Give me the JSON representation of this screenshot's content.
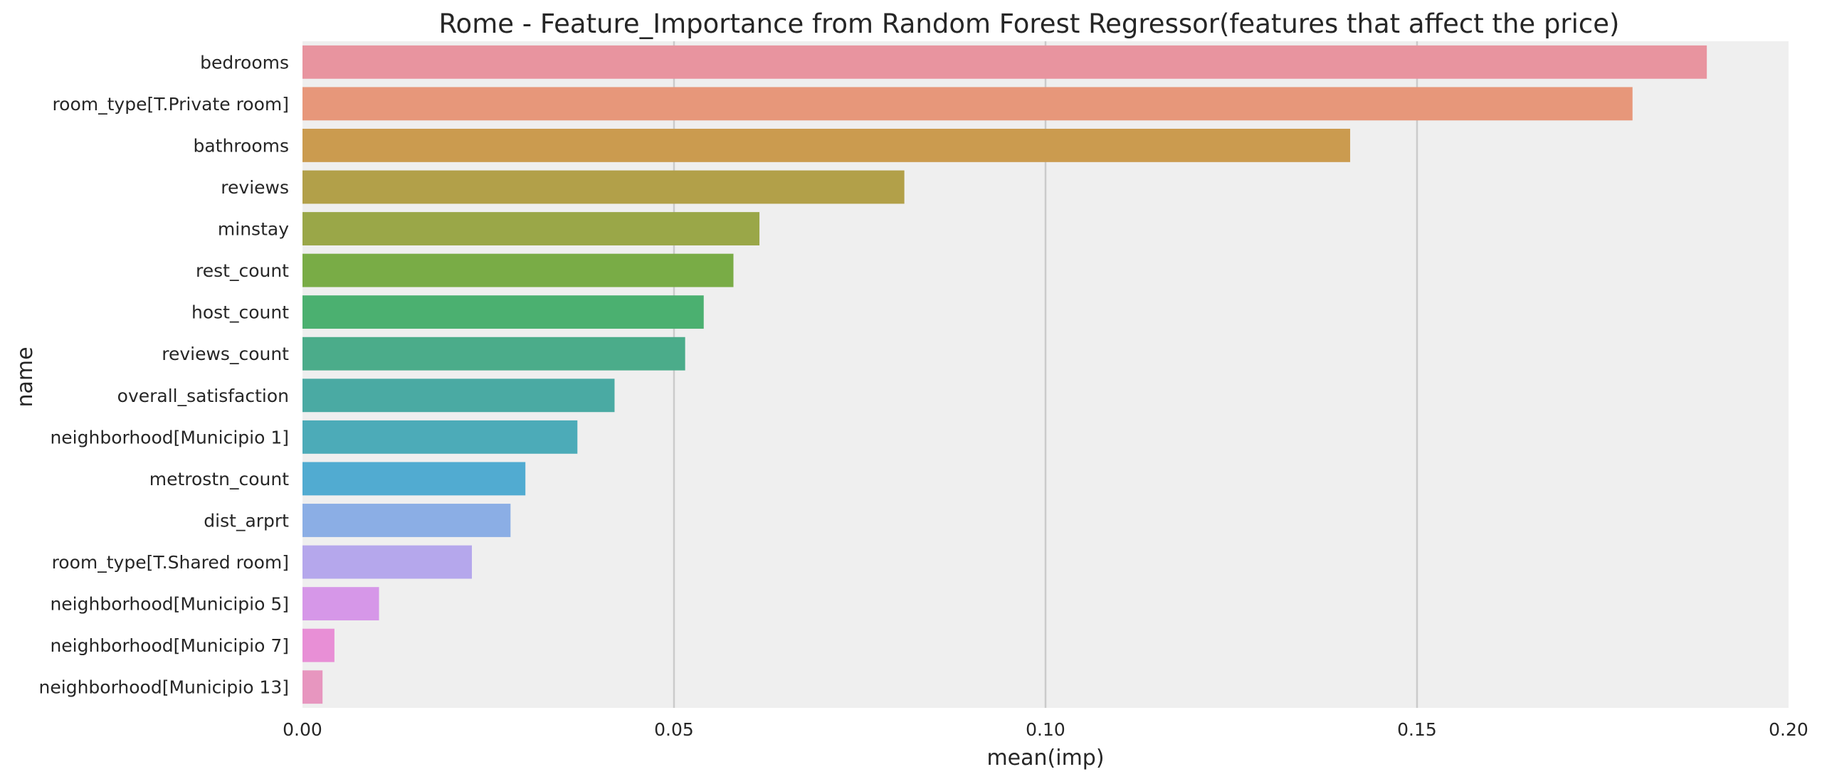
{
  "chart_data": {
    "type": "bar",
    "orientation": "horizontal",
    "title": "Rome - Feature_Importance from Random Forest Regressor(features that affect the price)",
    "xlabel": "mean(imp)",
    "ylabel": "name",
    "xlim": [
      0.0,
      0.2
    ],
    "xticks": [
      "0.00",
      "0.05",
      "0.10",
      "0.15",
      "0.20"
    ],
    "xtick_values": [
      0.0,
      0.05,
      0.1,
      0.15,
      0.2
    ],
    "grid": "vertical",
    "background": "#efefef",
    "categories": [
      "bedrooms",
      "room_type[T.Private room]",
      "bathrooms",
      "reviews",
      "minstay",
      "rest_count",
      "host_count",
      "reviews_count",
      "overall_satisfaction",
      "neighborhood[Municipio 1]",
      "metrostn_count",
      "dist_arprt",
      "room_type[T.Shared room]",
      "neighborhood[Municipio 5]",
      "neighborhood[Municipio 7]",
      "neighborhood[Municipio 13]"
    ],
    "values": [
      0.189,
      0.179,
      0.141,
      0.081,
      0.0615,
      0.058,
      0.054,
      0.0515,
      0.042,
      0.037,
      0.03,
      0.028,
      0.0228,
      0.0103,
      0.0043,
      0.0027
    ],
    "colors": [
      "#e8949f",
      "#e7977a",
      "#cb9b4f",
      "#b2a049",
      "#9aa748",
      "#79ac46",
      "#4bb070",
      "#4bac8a",
      "#4aaaa3",
      "#4cabb8",
      "#51abd1",
      "#8baee5",
      "#b5a7ec",
      "#d697e8",
      "#e88fd6",
      "#e796bf"
    ]
  }
}
